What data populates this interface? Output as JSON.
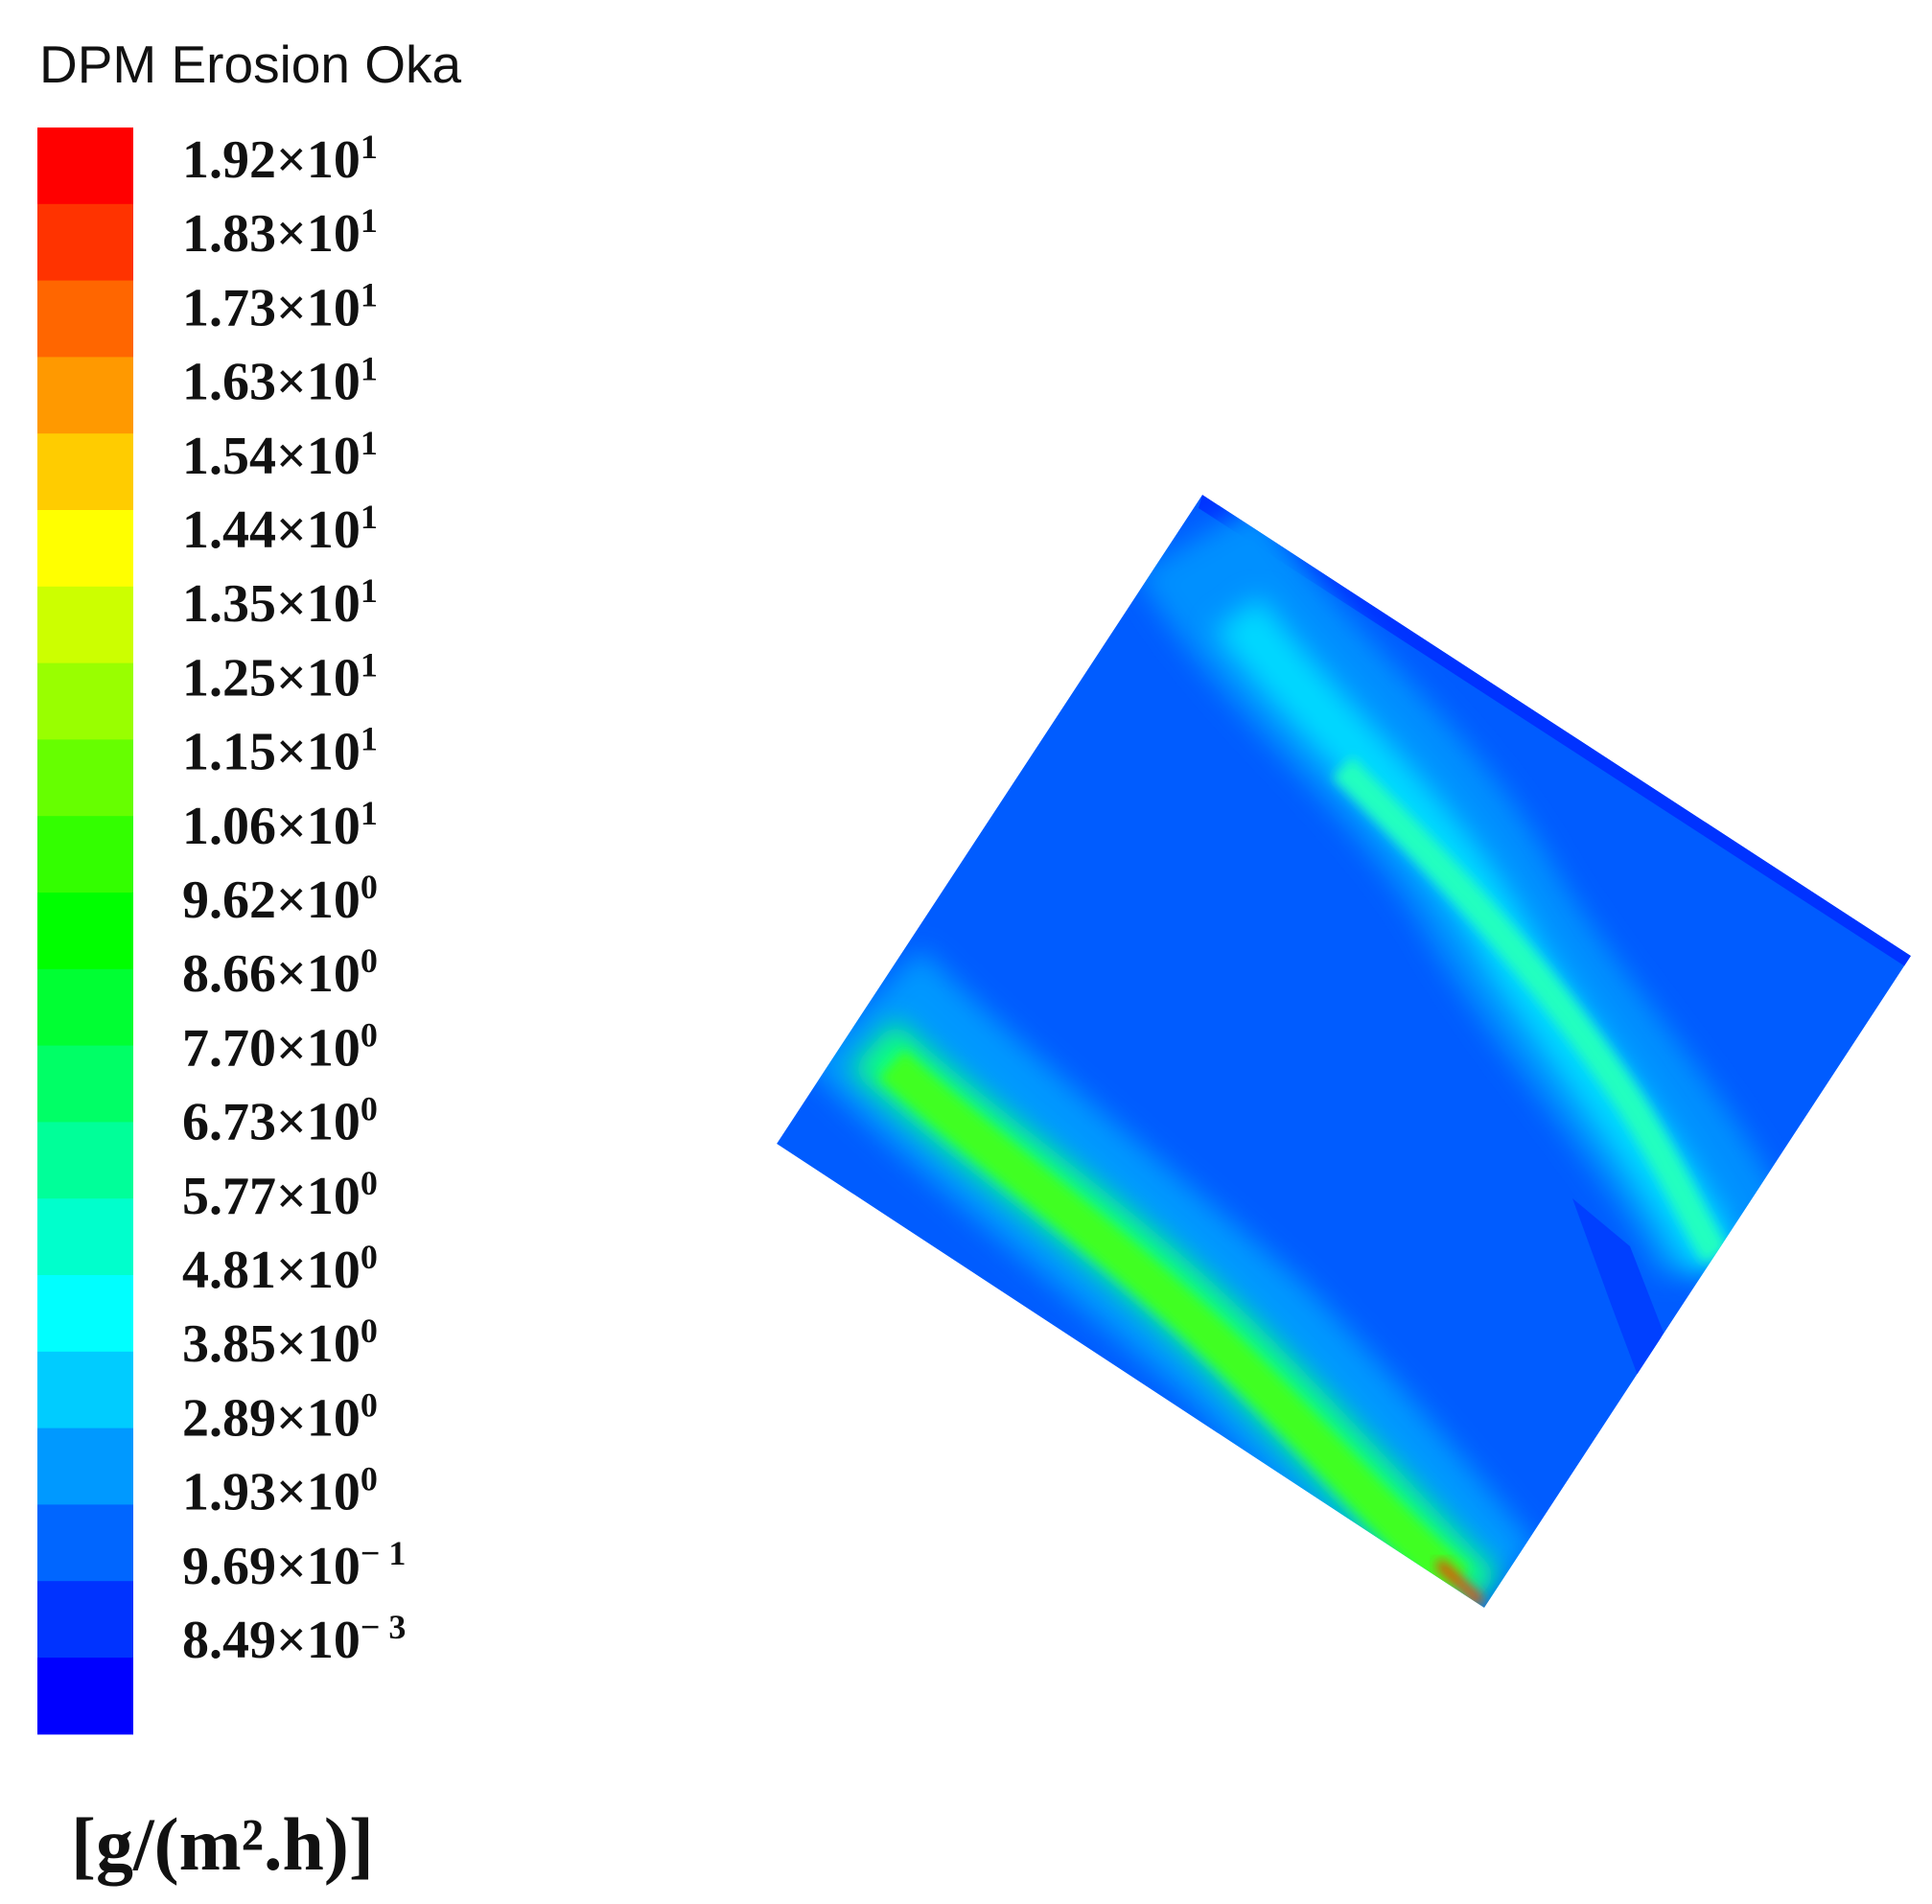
{
  "title": "DPM Erosion Oka",
  "legend": {
    "labels": [
      {
        "mantissa": "1.92×10",
        "exponent": "1"
      },
      {
        "mantissa": "1.83×10",
        "exponent": "1"
      },
      {
        "mantissa": "1.73×10",
        "exponent": "1"
      },
      {
        "mantissa": "1.63×10",
        "exponent": "1"
      },
      {
        "mantissa": "1.54×10",
        "exponent": "1"
      },
      {
        "mantissa": "1.44×10",
        "exponent": "1"
      },
      {
        "mantissa": "1.35×10",
        "exponent": "1"
      },
      {
        "mantissa": "1.25×10",
        "exponent": "1"
      },
      {
        "mantissa": "1.15×10",
        "exponent": "1"
      },
      {
        "mantissa": "1.06×10",
        "exponent": "1"
      },
      {
        "mantissa": "9.62×10",
        "exponent": "0"
      },
      {
        "mantissa": "8.66×10",
        "exponent": "0"
      },
      {
        "mantissa": "7.70×10",
        "exponent": "0"
      },
      {
        "mantissa": "6.73×10",
        "exponent": "0"
      },
      {
        "mantissa": "5.77×10",
        "exponent": "0"
      },
      {
        "mantissa": "4.81×10",
        "exponent": "0"
      },
      {
        "mantissa": "3.85×10",
        "exponent": "0"
      },
      {
        "mantissa": "2.89×10",
        "exponent": "0"
      },
      {
        "mantissa": "1.93×10",
        "exponent": "0"
      },
      {
        "mantissa": "9.69×10",
        "exponent": "− 1"
      },
      {
        "mantissa": "8.49×10",
        "exponent": "− 3"
      }
    ]
  },
  "units": "[g/(m².h)]"
}
